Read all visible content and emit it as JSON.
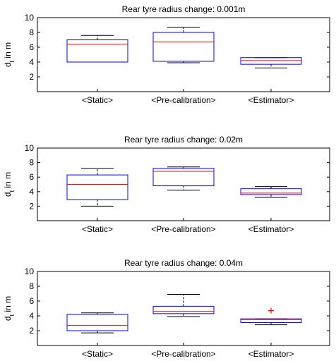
{
  "chart_data": [
    {
      "type": "box",
      "title": "Rear tyre radius change: 0.001m",
      "ylabel": "d_t in m",
      "ylabel_main": "d",
      "ylabel_sub": "t",
      "ylabel_rest": " in m",
      "ylim": [
        0,
        10
      ],
      "yticks": [
        "2",
        "4",
        "6",
        "8",
        "10"
      ],
      "categories": [
        "<Static>",
        "<Pre-calibration>",
        "<Estimator>"
      ],
      "boxes": [
        {
          "whisker_low": 4.0,
          "q1": 4.0,
          "median": 6.4,
          "q3": 7.0,
          "whisker_high": 7.6,
          "outliers": []
        },
        {
          "whisker_low": 3.9,
          "q1": 4.1,
          "median": 6.7,
          "q3": 8.0,
          "whisker_high": 8.7,
          "outliers": []
        },
        {
          "whisker_low": 3.2,
          "q1": 3.7,
          "median": 4.2,
          "q3": 4.6,
          "whisker_high": 4.6,
          "outliers": []
        }
      ]
    },
    {
      "type": "box",
      "title": "Rear tyre radius change: 0.02m",
      "ylabel": "d_t in m",
      "ylabel_main": "d",
      "ylabel_sub": "t",
      "ylabel_rest": " in m",
      "ylim": [
        0,
        10
      ],
      "yticks": [
        "2",
        "4",
        "6",
        "8",
        "10"
      ],
      "categories": [
        "<Static>",
        "<Pre-calibration>",
        "<Estimator>"
      ],
      "boxes": [
        {
          "whisker_low": 2.0,
          "q1": 2.9,
          "median": 5.0,
          "q3": 6.3,
          "whisker_high": 7.2,
          "outliers": []
        },
        {
          "whisker_low": 4.2,
          "q1": 4.8,
          "median": 6.8,
          "q3": 7.2,
          "whisker_high": 7.4,
          "outliers": []
        },
        {
          "whisker_low": 3.2,
          "q1": 3.6,
          "median": 3.8,
          "q3": 4.4,
          "whisker_high": 4.7,
          "outliers": []
        }
      ]
    },
    {
      "type": "box",
      "title": "Rear tyre radius change: 0.04m",
      "ylabel": "d_t in m",
      "ylabel_main": "d",
      "ylabel_sub": "t",
      "ylabel_rest": " in m",
      "ylim": [
        0,
        10
      ],
      "yticks": [
        "2",
        "4",
        "6",
        "8",
        "10"
      ],
      "categories": [
        "<Static>",
        "<Pre-calibration>",
        "<Estimator>"
      ],
      "boxes": [
        {
          "whisker_low": 1.7,
          "q1": 2.0,
          "median": 2.7,
          "q3": 4.2,
          "whisker_high": 4.4,
          "outliers": []
        },
        {
          "whisker_low": 3.9,
          "q1": 4.3,
          "median": 4.6,
          "q3": 5.3,
          "whisker_high": 6.9,
          "outliers": []
        },
        {
          "whisker_low": 2.8,
          "q1": 3.1,
          "median": 3.5,
          "q3": 3.6,
          "whisker_high": 3.6,
          "outliers": [
            4.7
          ]
        }
      ]
    }
  ],
  "colors": {
    "box": "#0000ff",
    "median": "#ff0000",
    "whisker": "#000000",
    "outlier": "#ff0000",
    "axes": "#000000"
  }
}
